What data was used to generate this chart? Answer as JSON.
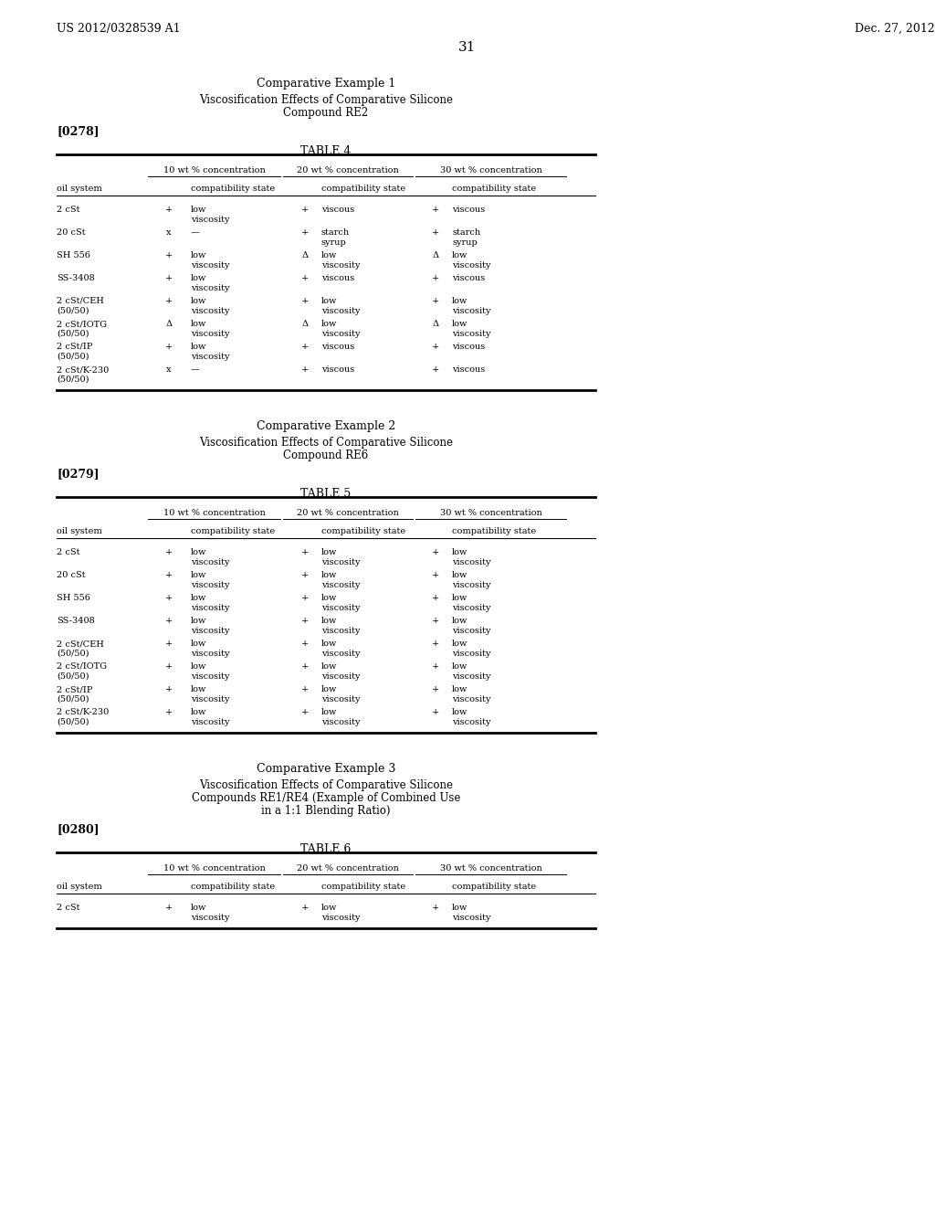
{
  "page_header_left": "US 2012/0328539 A1",
  "page_header_right": "Dec. 27, 2012",
  "page_number": "31",
  "background_color": "#ffffff",
  "text_color": "#000000",
  "sections": [
    {
      "example_title": "Comparative Example 1",
      "example_subtitle1": "Viscosification Effects of Comparative Silicone",
      "example_subtitle2": "Compound RE2",
      "example_subtitle3": null,
      "paragraph_tag": "[0278]",
      "table_title": "TABLE 4",
      "col_headers": [
        "10 wt % concentration",
        "20 wt % concentration",
        "30 wt % concentration"
      ],
      "sub_headers": [
        "oil system",
        "compatibility state",
        "compatibility state",
        "compatibility state"
      ],
      "rows": [
        [
          "2 cSt",
          "+",
          "low\nviscosity",
          "+",
          "viscous",
          "+",
          "viscous"
        ],
        [
          "20 cSt",
          "x",
          "—",
          "+",
          "starch\nsyrup",
          "+",
          "starch\nsyrup"
        ],
        [
          "SH 556",
          "+",
          "low\nviscosity",
          "Δ",
          "low\nviscosity",
          "Δ",
          "low\nviscosity"
        ],
        [
          "SS-3408",
          "+",
          "low\nviscosity",
          "+",
          "viscous",
          "+",
          "viscous"
        ],
        [
          "2 cSt/CEH\n(50/50)",
          "+",
          "low\nviscosity",
          "+",
          "low\nviscosity",
          "+",
          "low\nviscosity"
        ],
        [
          "2 cSt/IOTG\n(50/50)",
          "Δ",
          "low\nviscosity",
          "Δ",
          "low\nviscosity",
          "Δ",
          "low\nviscosity"
        ],
        [
          "2 cSt/IP\n(50/50)",
          "+",
          "low\nviscosity",
          "+",
          "viscous",
          "+",
          "viscous"
        ],
        [
          "2 cSt/K-230\n(50/50)",
          "x",
          "—",
          "+",
          "viscous",
          "+",
          "viscous"
        ]
      ]
    },
    {
      "example_title": "Comparative Example 2",
      "example_subtitle1": "Viscosification Effects of Comparative Silicone",
      "example_subtitle2": "Compound RE6",
      "example_subtitle3": null,
      "paragraph_tag": "[0279]",
      "table_title": "TABLE 5",
      "col_headers": [
        "10 wt % concentration",
        "20 wt % concentration",
        "30 wt % concentration"
      ],
      "sub_headers": [
        "oil system",
        "compatibility state",
        "compatibility state",
        "compatibility state"
      ],
      "rows": [
        [
          "2 cSt",
          "+",
          "low\nviscosity",
          "+",
          "low\nviscosity",
          "+",
          "low\nviscosity"
        ],
        [
          "20 cSt",
          "+",
          "low\nviscosity",
          "+",
          "low\nviscosity",
          "+",
          "low\nviscosity"
        ],
        [
          "SH 556",
          "+",
          "low\nviscosity",
          "+",
          "low\nviscosity",
          "+",
          "low\nviscosity"
        ],
        [
          "SS-3408",
          "+",
          "low\nviscosity",
          "+",
          "low\nviscosity",
          "+",
          "low\nviscosity"
        ],
        [
          "2 cSt/CEH\n(50/50)",
          "+",
          "low\nviscosity",
          "+",
          "low\nviscosity",
          "+",
          "low\nviscosity"
        ],
        [
          "2 cSt/IOTG\n(50/50)",
          "+",
          "low\nviscosity",
          "+",
          "low\nviscosity",
          "+",
          "low\nviscosity"
        ],
        [
          "2 cSt/IP\n(50/50)",
          "+",
          "low\nviscosity",
          "+",
          "low\nviscosity",
          "+",
          "low\nviscosity"
        ],
        [
          "2 cSt/K-230\n(50/50)",
          "+",
          "low\nviscosity",
          "+",
          "low\nviscosity",
          "+",
          "low\nviscosity"
        ]
      ]
    },
    {
      "example_title": "Comparative Example 3",
      "example_subtitle1": "Viscosification Effects of Comparative Silicone",
      "example_subtitle2": "Compounds RE1/RE4 (Example of Combined Use",
      "example_subtitle3": "in a 1:1 Blending Ratio)",
      "paragraph_tag": "[0280]",
      "table_title": "TABLE 6",
      "col_headers": [
        "10 wt % concentration",
        "20 wt % concentration",
        "30 wt % concentration"
      ],
      "sub_headers": [
        "oil system",
        "compatibility state",
        "compatibility state",
        "compatibility state"
      ],
      "rows": [
        [
          "2 cSt",
          "+",
          "low\nviscosity",
          "+",
          "low\nviscosity",
          "+",
          "low\nviscosity"
        ]
      ]
    }
  ]
}
